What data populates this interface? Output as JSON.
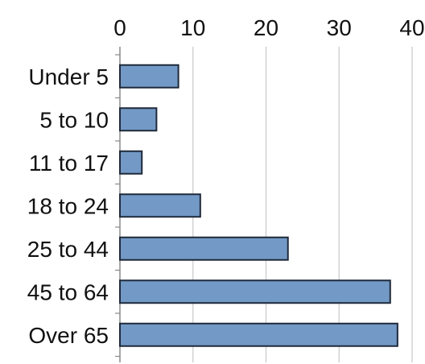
{
  "chart_data": {
    "type": "bar",
    "orientation": "horizontal",
    "title": "",
    "xlabel": "",
    "ylabel": "",
    "categories": [
      "Under 5",
      "5 to 10",
      "11 to 17",
      "18 to 24",
      "25 to 44",
      "45 to 64",
      "Over 65"
    ],
    "values": [
      8,
      5,
      3,
      11,
      23,
      37,
      38
    ],
    "xlim": [
      0,
      40
    ],
    "xticks": [
      0,
      10,
      20,
      30,
      40
    ],
    "x_axis_position": "top",
    "grid": true,
    "legend": "none",
    "bar_color": "#7399c6",
    "bar_edge_color": "#1f2a3a",
    "grid_color": "#c8c8c8"
  }
}
